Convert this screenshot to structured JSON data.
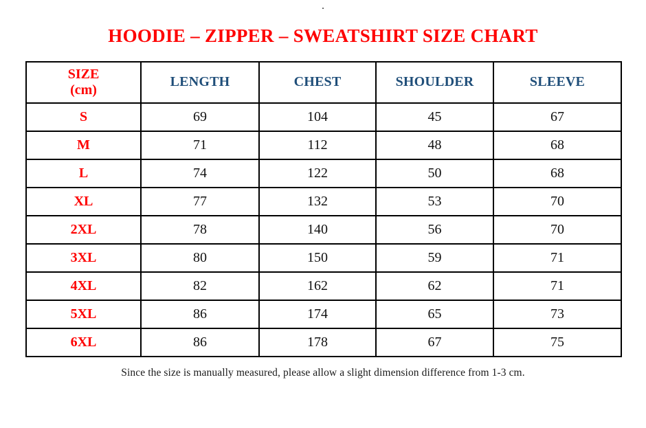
{
  "page": {
    "top_dot": ".",
    "footer_note": "Since the size is manually measured, please allow a slight dimension difference from 1-3 cm."
  },
  "colors": {
    "title_red": "#fe0000",
    "size_column_red": "#fe0000",
    "header_blue": "#1f4e79",
    "border_black": "#000000",
    "value_black": "#111111",
    "background": "#ffffff"
  },
  "header": {
    "size_line1": "SIZE",
    "size_line2": "(cm)"
  },
  "chart_data": {
    "type": "table",
    "title": "HOODIE – ZIPPER – SWEATSHIRT SIZE CHART",
    "columns": [
      "SIZE (cm)",
      "LENGTH",
      "CHEST",
      "SHOULDER",
      "SLEEVE"
    ],
    "rows": [
      [
        "S",
        "69",
        "104",
        "45",
        "67"
      ],
      [
        "M",
        "71",
        "112",
        "48",
        "68"
      ],
      [
        "L",
        "74",
        "122",
        "50",
        "68"
      ],
      [
        "XL",
        "77",
        "132",
        "53",
        "70"
      ],
      [
        "2XL",
        "78",
        "140",
        "56",
        "70"
      ],
      [
        "3XL",
        "80",
        "150",
        "59",
        "71"
      ],
      [
        "4XL",
        "82",
        "162",
        "62",
        "71"
      ],
      [
        "5XL",
        "86",
        "174",
        "65",
        "73"
      ],
      [
        "6XL",
        "86",
        "178",
        "67",
        "75"
      ]
    ],
    "notes": "All measurements in cm; slight 1-3 cm variance possible due to manual measuring."
  }
}
